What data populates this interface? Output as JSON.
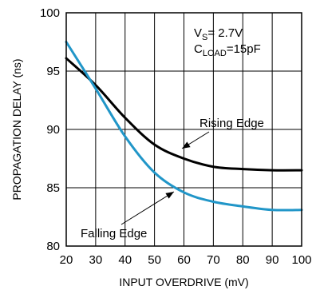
{
  "chart_data": {
    "type": "line",
    "title": "",
    "xlabel": "INPUT OVERDRIVE (mV)",
    "ylabel": "PROPAGATION DELAY (ns)",
    "xlim": [
      20,
      100
    ],
    "ylim": [
      80,
      100
    ],
    "xticks": [
      20,
      30,
      40,
      50,
      60,
      70,
      80,
      90,
      100
    ],
    "yticks": [
      80,
      85,
      90,
      95,
      100
    ],
    "grid": true,
    "series": [
      {
        "name": "Rising Edge",
        "color": "#000000",
        "x": [
          20,
          30,
          40,
          50,
          60,
          70,
          80,
          90,
          100
        ],
        "y": [
          96.1,
          93.8,
          91.0,
          88.7,
          87.5,
          86.8,
          86.6,
          86.5,
          86.5
        ]
      },
      {
        "name": "Falling Edge",
        "color": "#2196c8",
        "x": [
          20,
          30,
          40,
          50,
          60,
          70,
          80,
          90,
          100
        ],
        "y": [
          97.5,
          93.5,
          89.4,
          86.3,
          84.6,
          83.8,
          83.4,
          83.1,
          83.1
        ]
      }
    ],
    "annotations": {
      "vs_main": "V",
      "vs_sub": "S",
      "vs_value": "= 2.7V",
      "cload_main": "C",
      "cload_sub": "LOAD",
      "cload_value": "=15pF"
    }
  }
}
